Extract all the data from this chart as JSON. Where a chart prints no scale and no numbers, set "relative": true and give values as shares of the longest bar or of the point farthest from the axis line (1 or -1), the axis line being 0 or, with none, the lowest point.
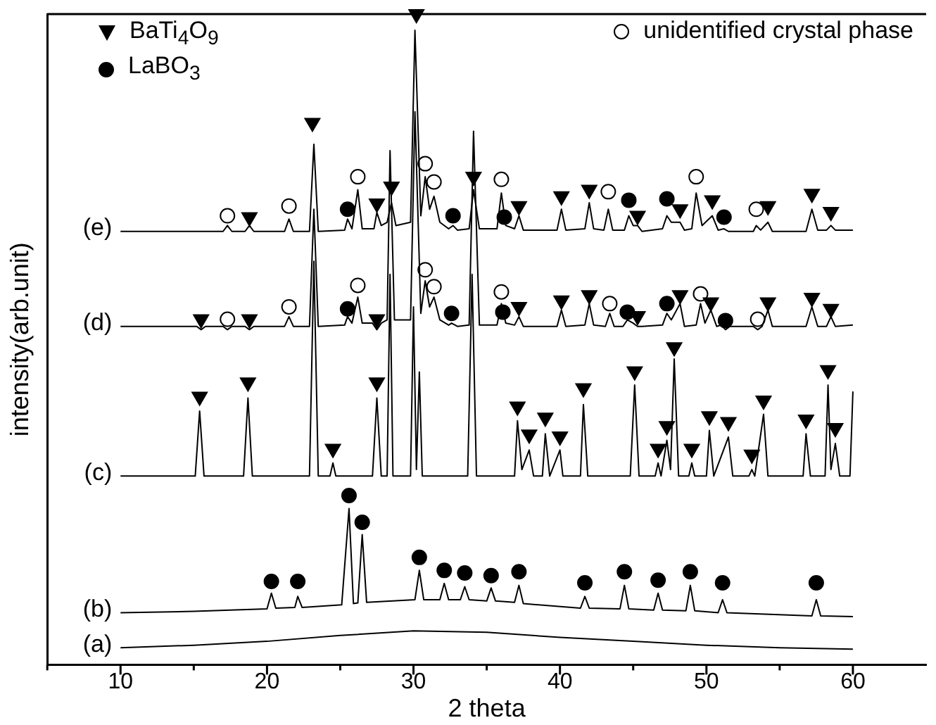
{
  "chart_data": {
    "type": "line",
    "relative": true,
    "xlabel": "2 theta",
    "ylabel": "intensity(arb.unit)",
    "xlim": [
      5,
      65
    ],
    "xticks": [
      {
        "value": 5,
        "label": null
      },
      10,
      {
        "value": 15,
        "label": null
      },
      20,
      {
        "value": 25,
        "label": null
      },
      30,
      {
        "value": 35,
        "label": null
      },
      40,
      {
        "value": 45,
        "label": null
      },
      50,
      {
        "value": 55,
        "label": null
      },
      60
    ],
    "grid": false,
    "legend": "top",
    "tick_labels": "x",
    "marker": "none",
    "line_style": "solid",
    "series": [
      {
        "name": "(a)",
        "color": "#000000",
        "x": [
          10,
          15,
          20,
          25,
          30,
          35,
          40,
          45,
          50,
          55,
          60
        ],
        "values": [
          0.026,
          0.03,
          0.036,
          0.045,
          0.052,
          0.05,
          0.042,
          0.036,
          0.03,
          0.026,
          0.024
        ]
      },
      {
        "name": "(b)",
        "color": "#000000",
        "x": [
          10,
          15,
          20.0,
          20.3,
          20.6,
          21.9,
          22.1,
          22.4,
          25.1,
          25.6,
          25.9,
          26.2,
          26.5,
          26.8,
          30.1,
          30.4,
          30.7,
          31.8,
          32.1,
          32.4,
          33.2,
          33.5,
          33.8,
          35.0,
          35.3,
          35.6,
          36.9,
          37.2,
          37.5,
          41.4,
          41.7,
          42.0,
          44.1,
          44.4,
          44.7,
          46.4,
          46.7,
          47.0,
          48.6,
          48.9,
          49.2,
          50.8,
          51.1,
          51.4,
          57.2,
          57.5,
          57.8,
          60
        ],
        "values": [
          0.08,
          0.082,
          0.086,
          0.11,
          0.087,
          0.088,
          0.105,
          0.088,
          0.092,
          0.24,
          0.094,
          0.095,
          0.2,
          0.096,
          0.1,
          0.145,
          0.1,
          0.1,
          0.125,
          0.1,
          0.1,
          0.12,
          0.1,
          0.098,
          0.118,
          0.098,
          0.096,
          0.122,
          0.094,
          0.087,
          0.105,
          0.087,
          0.086,
          0.122,
          0.086,
          0.084,
          0.11,
          0.084,
          0.083,
          0.122,
          0.083,
          0.08,
          0.1,
          0.08,
          0.075,
          0.1,
          0.075,
          0.074
        ]
      },
      {
        "name": "(c)",
        "color": "#000000",
        "x": [
          10,
          15.1,
          15.4,
          15.7,
          18.4,
          18.7,
          19.0,
          22.9,
          23.2,
          23.5,
          24.3,
          24.5,
          24.7,
          27.2,
          27.5,
          27.8,
          28.2,
          28.4,
          28.6,
          29.8,
          30.0,
          30.2,
          30.4,
          30.6,
          33.7,
          34.0,
          34.3,
          36.9,
          37.1,
          37.4,
          37.9,
          38.2,
          38.8,
          39.0,
          39.3,
          40.0,
          40.2,
          41.4,
          41.6,
          41.9,
          44.8,
          45.1,
          45.4,
          46.5,
          46.7,
          46.9,
          47.3,
          47.55,
          47.8,
          48.1,
          48.8,
          49.0,
          49.2,
          50.0,
          50.2,
          50.5,
          51.5,
          51.8,
          52.9,
          53.1,
          53.3,
          53.9,
          54.2,
          56.6,
          56.8,
          57.1,
          58.1,
          58.3,
          58.5,
          58.8,
          59.1,
          59.8,
          60
        ],
        "values": [
          0.29,
          0.29,
          0.39,
          0.29,
          0.29,
          0.41,
          0.29,
          0.29,
          0.62,
          0.29,
          0.29,
          0.31,
          0.29,
          0.29,
          0.41,
          0.29,
          0.29,
          0.6,
          0.29,
          0.29,
          0.55,
          0.3,
          0.45,
          0.29,
          0.29,
          0.6,
          0.29,
          0.29,
          0.375,
          0.3,
          0.33,
          0.29,
          0.29,
          0.355,
          0.29,
          0.33,
          0.29,
          0.29,
          0.4,
          0.29,
          0.29,
          0.43,
          0.29,
          0.29,
          0.31,
          0.29,
          0.345,
          0.3,
          0.47,
          0.29,
          0.29,
          0.31,
          0.29,
          0.29,
          0.36,
          0.29,
          0.35,
          0.29,
          0.29,
          0.3,
          0.29,
          0.385,
          0.29,
          0.29,
          0.355,
          0.29,
          0.29,
          0.43,
          0.3,
          0.34,
          0.29,
          0.29,
          0.42
        ]
      },
      {
        "name": "(d)",
        "color": "#000000",
        "x": [
          10,
          15.2,
          15.5,
          15.8,
          17.0,
          17.3,
          17.6,
          18.5,
          18.8,
          19.1,
          21.2,
          21.5,
          21.8,
          22.9,
          23.2,
          23.5,
          25.3,
          25.5,
          25.8,
          26.2,
          26.5,
          27.2,
          27.5,
          27.8,
          28.2,
          28.4,
          28.7,
          29.8,
          30.1,
          30.5,
          30.8,
          31.1,
          31.4,
          31.8,
          32.4,
          32.6,
          33.0,
          33.8,
          34.1,
          34.5,
          35.7,
          36.0,
          36.3,
          36.9,
          37.2,
          37.5,
          39.8,
          40.1,
          40.4,
          41.7,
          42.0,
          42.3,
          43.1,
          43.4,
          43.7,
          44.3,
          44.6,
          45.0,
          45.3,
          45.6,
          47.0,
          47.3,
          47.6,
          48.2,
          48.5,
          49.3,
          49.6,
          49.9,
          50.3,
          50.7,
          51.0,
          51.3,
          51.6,
          53.2,
          53.5,
          53.8,
          54.2,
          54.5,
          56.8,
          57.2,
          57.6,
          58.2,
          58.5,
          58.8,
          60
        ],
        "values": [
          0.52,
          0.52,
          0.515,
          0.52,
          0.52,
          0.515,
          0.52,
          0.52,
          0.515,
          0.52,
          0.52,
          0.535,
          0.52,
          0.52,
          0.7,
          0.52,
          0.522,
          0.535,
          0.525,
          0.565,
          0.525,
          0.525,
          0.515,
          0.525,
          0.53,
          0.79,
          0.53,
          0.53,
          0.85,
          0.54,
          0.59,
          0.55,
          0.565,
          0.53,
          0.522,
          0.525,
          0.52,
          0.522,
          0.82,
          0.522,
          0.522,
          0.555,
          0.525,
          0.522,
          0.535,
          0.52,
          0.52,
          0.545,
          0.52,
          0.522,
          0.555,
          0.522,
          0.52,
          0.54,
          0.52,
          0.52,
          0.53,
          0.525,
          0.52,
          0.52,
          0.522,
          0.54,
          0.53,
          0.555,
          0.52,
          0.522,
          0.555,
          0.525,
          0.545,
          0.52,
          0.522,
          0.515,
          0.52,
          0.52,
          0.515,
          0.52,
          0.545,
          0.52,
          0.52,
          0.55,
          0.52,
          0.52,
          0.535,
          0.52,
          0.522
        ]
      },
      {
        "name": "(e)",
        "color": "#000000",
        "x": [
          10,
          17.0,
          17.3,
          17.6,
          18.5,
          18.8,
          19.1,
          21.2,
          21.5,
          21.8,
          22.9,
          23.2,
          23.5,
          25.3,
          25.5,
          25.8,
          26.2,
          26.5,
          27.3,
          27.5,
          27.8,
          28.2,
          28.5,
          28.8,
          29.8,
          30.1,
          30.5,
          30.8,
          31.1,
          31.4,
          31.8,
          32.4,
          32.7,
          33.0,
          33.8,
          34.1,
          34.5,
          35.7,
          36.0,
          36.3,
          36.9,
          37.2,
          37.5,
          39.8,
          40.1,
          40.4,
          41.7,
          42.0,
          42.3,
          43.0,
          43.3,
          43.6,
          44.4,
          44.7,
          45.0,
          45.3,
          45.6,
          47.0,
          47.3,
          47.6,
          48.2,
          48.5,
          49.0,
          49.3,
          49.7,
          50.4,
          50.8,
          51.2,
          51.5,
          53.2,
          53.4,
          53.7,
          54.2,
          54.5,
          56.8,
          57.2,
          57.6,
          58.2,
          58.5,
          58.8,
          60
        ],
        "values": [
          0.666,
          0.666,
          0.675,
          0.666,
          0.666,
          0.675,
          0.666,
          0.666,
          0.685,
          0.666,
          0.666,
          0.8,
          0.666,
          0.668,
          0.685,
          0.67,
          0.73,
          0.67,
          0.67,
          0.695,
          0.675,
          0.68,
          0.71,
          0.675,
          0.68,
          0.975,
          0.69,
          0.75,
          0.7,
          0.72,
          0.68,
          0.67,
          0.675,
          0.668,
          0.67,
          0.73,
          0.67,
          0.67,
          0.725,
          0.675,
          0.67,
          0.69,
          0.668,
          0.668,
          0.7,
          0.668,
          0.67,
          0.71,
          0.67,
          0.668,
          0.7,
          0.668,
          0.668,
          0.69,
          0.675,
          0.675,
          0.666,
          0.67,
          0.69,
          0.68,
          0.68,
          0.668,
          0.67,
          0.725,
          0.675,
          0.69,
          0.668,
          0.67,
          0.666,
          0.666,
          0.675,
          0.668,
          0.68,
          0.666,
          0.666,
          0.7,
          0.668,
          0.668,
          0.675,
          0.668,
          0.668
        ]
      },
      {
        "name": "BaTi$_{4}$O$_{9}$",
        "color": "#000000",
        "type": "scatter",
        "marker": "triangle",
        "x": [
          15.4,
          18.7,
          24.5,
          27.5,
          37.1,
          37.9,
          39.0,
          40.0,
          41.6,
          45.1,
          46.7,
          47.3,
          47.8,
          49.0,
          50.2,
          51.5,
          53.1,
          53.9,
          56.8,
          58.3,
          58.8,
          15.5,
          18.8,
          27.5,
          37.2,
          40.1,
          42.0,
          45.3,
          48.2,
          50.3,
          54.2,
          57.2,
          58.5,
          18.8,
          23.1,
          27.5,
          28.5,
          30.2,
          34.1,
          37.2,
          40.1,
          42.0,
          45.3,
          48.2,
          50.4,
          54.2,
          57.2,
          58.5
        ],
        "values": [
          0.412,
          0.434,
          0.332,
          0.434,
          0.397,
          0.354,
          0.38,
          0.351,
          0.425,
          0.451,
          0.332,
          0.367,
          0.488,
          0.332,
          0.382,
          0.373,
          0.323,
          0.406,
          0.377,
          0.453,
          0.364,
          0.531,
          0.531,
          0.531,
          0.55,
          0.56,
          0.568,
          0.536,
          0.568,
          0.557,
          0.557,
          0.564,
          0.547,
          0.688,
          0.833,
          0.709,
          0.735,
          1.0,
          0.75,
          0.705,
          0.72,
          0.73,
          0.69,
          0.7,
          0.714,
          0.705,
          0.724,
          0.696
        ]
      },
      {
        "name": "LaBO$_{3}$",
        "color": "#000000",
        "type": "scatter",
        "marker": "circle",
        "x": [
          20.3,
          22.1,
          25.6,
          26.5,
          30.4,
          32.1,
          33.5,
          35.3,
          37.2,
          41.7,
          44.4,
          46.7,
          48.9,
          51.1,
          57.5,
          25.5,
          32.6,
          36.1,
          44.6,
          47.3,
          51.3,
          25.5,
          32.7,
          36.2,
          44.7,
          47.3,
          51.2
        ],
        "values": [
          0.128,
          0.128,
          0.26,
          0.219,
          0.165,
          0.145,
          0.141,
          0.137,
          0.143,
          0.126,
          0.143,
          0.13,
          0.143,
          0.126,
          0.126,
          0.547,
          0.54,
          0.542,
          0.542,
          0.555,
          0.529,
          0.7,
          0.69,
          0.688,
          0.714,
          0.716,
          0.688
        ]
      },
      {
        "name": "unidentified crystal phase",
        "color": "#ffffff",
        "type": "scatter",
        "marker": "circle",
        "x": [
          17.3,
          21.5,
          26.2,
          30.8,
          31.4,
          36.0,
          43.4,
          49.6,
          53.5,
          17.3,
          21.5,
          26.2,
          30.8,
          31.4,
          36.0,
          43.3,
          49.3,
          53.4
        ],
        "values": [
          0.531,
          0.55,
          0.583,
          0.607,
          0.581,
          0.573,
          0.555,
          0.57,
          0.531,
          0.69,
          0.705,
          0.75,
          0.77,
          0.742,
          0.746,
          0.727,
          0.75,
          0.7
        ]
      }
    ]
  }
}
